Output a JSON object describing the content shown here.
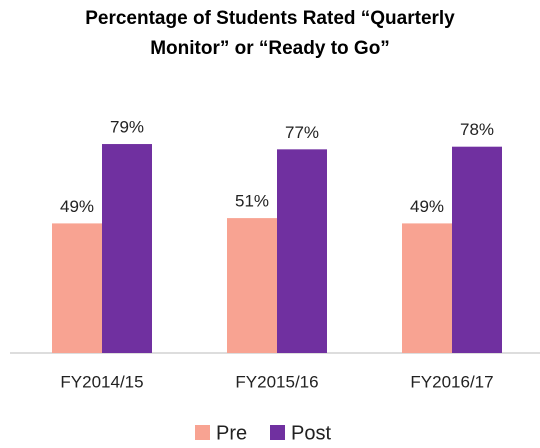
{
  "chart_data": {
    "type": "bar",
    "title": "Percentage of Students Rated “Quarterly Monitor” or “Ready to Go”",
    "categories": [
      "FY2014/15",
      "FY2015/16",
      "FY2016/17"
    ],
    "series": [
      {
        "name": "Pre",
        "color": "#f8a392",
        "values": [
          49,
          51,
          49
        ],
        "value_labels": [
          "49%",
          "51%",
          "49%"
        ]
      },
      {
        "name": "Post",
        "color": "#7030a0",
        "values": [
          79,
          77,
          78
        ],
        "value_labels": [
          "79%",
          "77%",
          "78%"
        ]
      }
    ],
    "legend": "bottom"
  }
}
